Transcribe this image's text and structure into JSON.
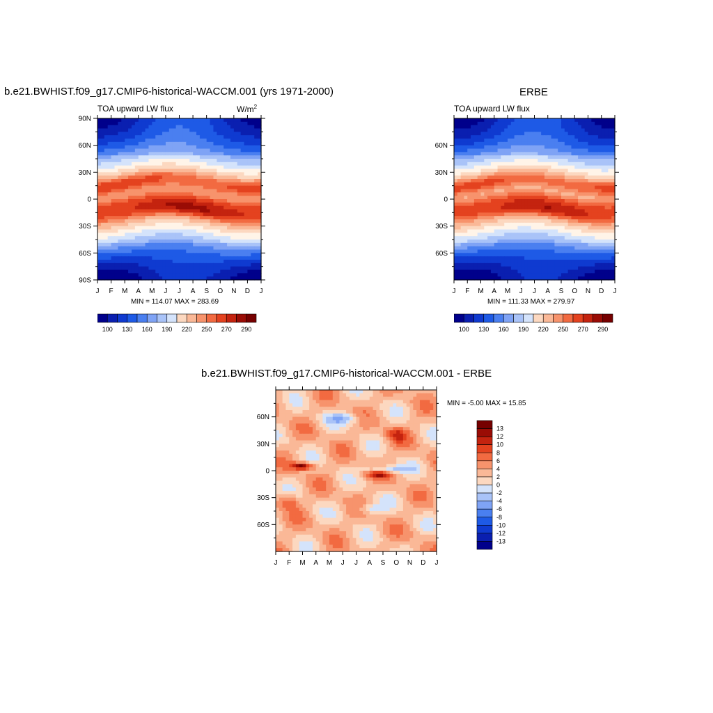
{
  "colors": {
    "palette": [
      "#00008b",
      "#0a1fb0",
      "#0f3ad0",
      "#1e5ae6",
      "#4a7ff0",
      "#7fa3f5",
      "#a9c3f8",
      "#d4e3fb",
      "#fff4e8",
      "#fcd8c0",
      "#fab897",
      "#f7936c",
      "#f26a41",
      "#e4421f",
      "#c4230f",
      "#9a0c05",
      "#760000"
    ],
    "axis": "#000000"
  },
  "panel_model": {
    "header": "b.e21.BWHIST.f09_g17.CMIP6-historical-WACCM.001 (yrs 1971-2000)",
    "left_label": "TOA upward LW flux",
    "units_base": "W/m",
    "units_exp": "2",
    "stats": "MIN = 114.07 MAX = 283.69",
    "colorbar_labels": [
      "100",
      "130",
      "160",
      "190",
      "220",
      "250",
      "270",
      "290"
    ]
  },
  "panel_obs": {
    "header": "ERBE",
    "left_label": "TOA upward LW flux",
    "stats": "MIN = 111.33 MAX = 279.97",
    "colorbar_labels": [
      "100",
      "130",
      "160",
      "190",
      "220",
      "250",
      "270",
      "290"
    ]
  },
  "panel_diff": {
    "header": "b.e21.BWHIST.f09_g17.CMIP6-historical-WACCM.001 - ERBE",
    "stats": "MIN =  -5.00 MAX =  15.85",
    "colorbar_labels": [
      "13",
      "12",
      "10",
      "8",
      "6",
      "4",
      "2",
      "0",
      "-2",
      "-4",
      "-6",
      "-8",
      "-10",
      "-12",
      "-13"
    ]
  },
  "chart_data": [
    {
      "type": "heatmap",
      "title": "b.e21.BWHIST.f09_g17.CMIP6-historical-WACCM.001 (yrs 1971-2000)",
      "field": "TOA upward LW flux",
      "units": "W/m2",
      "x_ticks": [
        "J",
        "F",
        "M",
        "A",
        "M",
        "J",
        "J",
        "A",
        "S",
        "O",
        "N",
        "D",
        "J"
      ],
      "y_ticks": [
        "90N",
        "60N",
        "30N",
        "0",
        "30S",
        "60S",
        "90S"
      ],
      "ylim": [
        -90,
        90
      ],
      "min": 114.07,
      "max": 283.69,
      "levels": [
        100,
        115,
        130,
        145,
        160,
        175,
        190,
        205,
        220,
        235,
        250,
        260,
        270,
        280,
        290,
        300
      ]
    },
    {
      "type": "heatmap",
      "title": "ERBE",
      "field": "TOA upward LW flux",
      "units": "W/m2",
      "x_ticks": [
        "J",
        "F",
        "M",
        "A",
        "M",
        "J",
        "J",
        "A",
        "S",
        "O",
        "N",
        "D",
        "J"
      ],
      "y_ticks": [
        "60N",
        "30N",
        "0",
        "30S",
        "60S"
      ],
      "ylim": [
        -90,
        90
      ],
      "min": 111.33,
      "max": 279.97,
      "levels": [
        100,
        115,
        130,
        145,
        160,
        175,
        190,
        205,
        220,
        235,
        250,
        260,
        270,
        280,
        290,
        300
      ]
    },
    {
      "type": "heatmap",
      "title": "b.e21.BWHIST.f09_g17.CMIP6-historical-WACCM.001 - ERBE",
      "x_ticks": [
        "J",
        "F",
        "M",
        "A",
        "M",
        "J",
        "J",
        "A",
        "S",
        "O",
        "N",
        "D",
        "J"
      ],
      "y_ticks": [
        "60N",
        "30N",
        "0",
        "30S",
        "60S"
      ],
      "ylim": [
        -90,
        90
      ],
      "min": -5.0,
      "max": 15.85,
      "levels": [
        -13,
        -12,
        -10,
        -8,
        -6,
        -4,
        -2,
        0,
        2,
        4,
        6,
        8,
        10,
        12,
        13
      ]
    }
  ]
}
